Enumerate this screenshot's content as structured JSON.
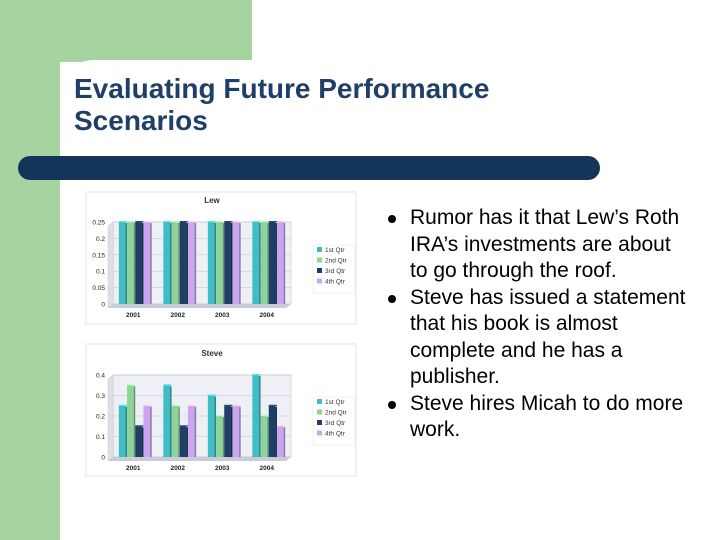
{
  "slide": {
    "title": "Evaluating Future Performance Scenarios",
    "bullets": [
      "Rumor has it that Lew’s Roth IRA’s investments are about to go through the roof.",
      "Steve has issued a statement that his book is almost complete and he has a publisher.",
      "Steve hires Micah to do more work."
    ]
  },
  "colors": {
    "background_green": "#a6d4a0",
    "title_text": "#1f3f68",
    "title_bar": "#13355a",
    "series": [
      "#3fbdc3",
      "#8fd39a",
      "#1e3e66",
      "#c9a6ef"
    ]
  },
  "chart_data": [
    {
      "type": "bar",
      "title": "Lew",
      "categories": [
        "2001",
        "2002",
        "2003",
        "2004"
      ],
      "ylim": [
        0,
        0.25
      ],
      "yticks": [
        "0",
        "0.05",
        "0.1",
        "0.15",
        "0.2",
        "0.25"
      ],
      "legend": "right",
      "series": [
        {
          "name": "1st Qtr",
          "values": [
            0.25,
            0.25,
            0.25,
            0.25
          ]
        },
        {
          "name": "2nd Qtr",
          "values": [
            0.25,
            0.25,
            0.25,
            0.25
          ]
        },
        {
          "name": "3rd Qtr",
          "values": [
            0.25,
            0.25,
            0.25,
            0.25
          ]
        },
        {
          "name": "4th Qtr",
          "values": [
            0.25,
            0.25,
            0.25,
            0.25
          ]
        }
      ]
    },
    {
      "type": "bar",
      "title": "Steve",
      "categories": [
        "2001",
        "2002",
        "2003",
        "2004"
      ],
      "ylim": [
        0,
        0.4
      ],
      "yticks": [
        "0",
        "0.1",
        "0.2",
        "0.3",
        "0.4"
      ],
      "legend": "right",
      "series": [
        {
          "name": "1st Qtr",
          "values": [
            0.25,
            0.35,
            0.3,
            0.4
          ]
        },
        {
          "name": "2nd Qtr",
          "values": [
            0.35,
            0.25,
            0.2,
            0.2
          ]
        },
        {
          "name": "3rd Qtr",
          "values": [
            0.15,
            0.15,
            0.25,
            0.25
          ]
        },
        {
          "name": "4th Qtr",
          "values": [
            0.25,
            0.25,
            0.25,
            0.15
          ]
        }
      ]
    }
  ]
}
